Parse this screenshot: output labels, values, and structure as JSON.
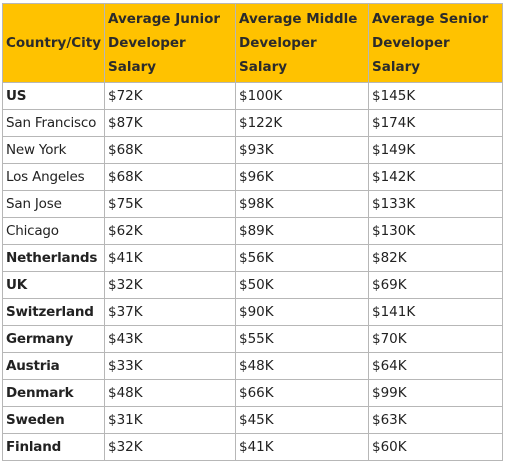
{
  "table": {
    "headers": [
      "Country/City",
      "Average Junior Developer Salary",
      "Average Middle Developer Salary",
      "Average Senior Developer Salary"
    ],
    "rows": [
      {
        "name": "US",
        "bold": true,
        "junior": "$72K",
        "middle": "$100K",
        "senior": "$145K"
      },
      {
        "name": "San Francisco",
        "bold": false,
        "junior": "$87K",
        "middle": "$122K",
        "senior": "$174K"
      },
      {
        "name": "New York",
        "bold": false,
        "junior": "$68K",
        "middle": "$93K",
        "senior": "$149K"
      },
      {
        "name": "Los Angeles",
        "bold": false,
        "junior": "$68K",
        "middle": "$96K",
        "senior": "$142K"
      },
      {
        "name": "San Jose",
        "bold": false,
        "junior": "$75K",
        "middle": "$98K",
        "senior": "$133K"
      },
      {
        "name": "Chicago",
        "bold": false,
        "junior": "$62K",
        "middle": "$89K",
        "senior": "$130K"
      },
      {
        "name": "Netherlands",
        "bold": true,
        "junior": "$41K",
        "middle": "$56K",
        "senior": "$82K"
      },
      {
        "name": "UK",
        "bold": true,
        "junior": "$32K",
        "middle": "$50K",
        "senior": "$69K"
      },
      {
        "name": "Switzerland",
        "bold": true,
        "junior": "$37K",
        "middle": "$90K",
        "senior": "$141K"
      },
      {
        "name": "Germany",
        "bold": true,
        "junior": "$43K",
        "middle": "$55K",
        "senior": "$70K"
      },
      {
        "name": "Austria",
        "bold": true,
        "junior": "$33K",
        "middle": "$48K",
        "senior": "$64K"
      },
      {
        "name": "Denmark",
        "bold": true,
        "junior": "$48K",
        "middle": "$66K",
        "senior": "$99K"
      },
      {
        "name": "Sweden",
        "bold": true,
        "junior": "$31K",
        "middle": "$45K",
        "senior": "$63K"
      },
      {
        "name": "Finland",
        "bold": true,
        "junior": "$32K",
        "middle": "$41K",
        "senior": "$60K"
      }
    ],
    "colors": {
      "header_background": "#ffc200",
      "border": "#b7b7b7"
    }
  }
}
